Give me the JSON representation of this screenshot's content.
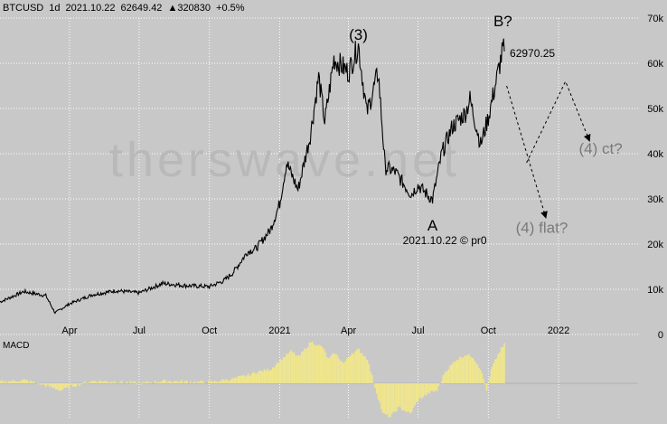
{
  "header": {
    "symbol": "BTCUSD",
    "interval": "1d",
    "date": "2021.10.22",
    "price": "62649.42",
    "volume_text": "▲320830",
    "change": "+0.5%"
  },
  "watermark": "therswave.net",
  "colors": {
    "background": "#c8c8c8",
    "grid": "#ffffff",
    "price_line": "#000000",
    "macd_fill": "#f0e68c",
    "annotation_gray": "#7a7a7a"
  },
  "chart_data": [
    {
      "type": "line",
      "title": "BTCUSD",
      "x_tick_labels": [
        "Apr",
        "Jul",
        "Oct",
        "2021",
        "Apr",
        "Jul",
        "Oct",
        "2022"
      ],
      "y_tick_labels": [
        "0",
        "10k",
        "20k",
        "30k",
        "40k",
        "50k",
        "60k",
        "70k"
      ],
      "ylim": [
        0,
        70000
      ],
      "xlim": [
        "2020-01-01",
        "2022-04-15"
      ],
      "y_axis_side": "right",
      "grid": true,
      "x": [
        "2020-01-01",
        "2020-02-01",
        "2020-03-01",
        "2020-03-13",
        "2020-04-01",
        "2020-05-01",
        "2020-06-01",
        "2020-07-01",
        "2020-08-01",
        "2020-09-01",
        "2020-10-01",
        "2020-10-20",
        "2020-11-01",
        "2020-11-20",
        "2020-12-01",
        "2020-12-20",
        "2021-01-01",
        "2021-01-10",
        "2021-01-25",
        "2021-02-10",
        "2021-02-21",
        "2021-03-01",
        "2021-03-13",
        "2021-04-01",
        "2021-04-14",
        "2021-04-25",
        "2021-05-10",
        "2021-05-19",
        "2021-06-01",
        "2021-06-22",
        "2021-07-01",
        "2021-07-20",
        "2021-08-01",
        "2021-08-15",
        "2021-09-01",
        "2021-09-07",
        "2021-09-21",
        "2021-10-01",
        "2021-10-10",
        "2021-10-20",
        "2021-10-22"
      ],
      "y": [
        7200,
        9500,
        8600,
        4800,
        6800,
        8800,
        9700,
        9200,
        11300,
        10800,
        10600,
        11900,
        13700,
        18300,
        19000,
        23200,
        29000,
        38000,
        32000,
        44000,
        57000,
        47000,
        61000,
        58000,
        64000,
        49000,
        58000,
        37000,
        36000,
        31000,
        33000,
        29800,
        40000,
        46000,
        49000,
        52000,
        42000,
        48000,
        55000,
        63000,
        62649
      ],
      "annotations": [
        {
          "label": "(3)",
          "x": "2021-04-14",
          "y": 64000
        },
        {
          "label": "A",
          "x": "2021-07-20",
          "y": 29800
        },
        {
          "label": "B?",
          "x": "2021-10-20",
          "y": 67000
        },
        {
          "label": "62970.25",
          "x": "2021-10-22",
          "y": 62970
        },
        {
          "label": "2021.10.22 © pr0",
          "x": "2021-08-05",
          "y": 20000
        },
        {
          "label": "(4) flat?",
          "x": "2021-12-10",
          "y": 22500
        },
        {
          "label": "(4) ct?",
          "x": "2022-02-25",
          "y": 40000
        }
      ],
      "projections": [
        {
          "name": "flat",
          "x": [
            "2021-10-25",
            "2021-12-15"
          ],
          "y": [
            55000,
            26000
          ]
        },
        {
          "name": "ct",
          "x": [
            "2021-11-20",
            "2022-01-10",
            "2022-02-10"
          ],
          "y": [
            38000,
            56000,
            43000
          ]
        }
      ]
    },
    {
      "type": "bar",
      "title": "MACD",
      "x": [
        "2020-01-01",
        "2020-02-01",
        "2020-03-01",
        "2020-03-20",
        "2020-04-01",
        "2020-05-01",
        "2020-06-01",
        "2020-07-01",
        "2020-08-01",
        "2020-09-01",
        "2020-10-01",
        "2020-10-20",
        "2020-11-01",
        "2020-11-20",
        "2020-12-01",
        "2020-12-20",
        "2021-01-01",
        "2021-01-15",
        "2021-01-25",
        "2021-02-10",
        "2021-02-25",
        "2021-03-05",
        "2021-03-13",
        "2021-03-25",
        "2021-04-05",
        "2021-04-14",
        "2021-04-25",
        "2021-05-05",
        "2021-05-15",
        "2021-05-25",
        "2021-06-05",
        "2021-06-20",
        "2021-07-01",
        "2021-07-15",
        "2021-07-25",
        "2021-08-05",
        "2021-08-20",
        "2021-09-01",
        "2021-09-10",
        "2021-09-20",
        "2021-09-28",
        "2021-10-05",
        "2021-10-15",
        "2021-10-22"
      ],
      "values": [
        20,
        40,
        -30,
        -90,
        -40,
        30,
        20,
        0,
        30,
        20,
        15,
        40,
        60,
        100,
        140,
        180,
        290,
        400,
        330,
        520,
        450,
        300,
        380,
        250,
        380,
        420,
        300,
        -50,
        -380,
        -420,
        -300,
        -380,
        -200,
        -120,
        -90,
        150,
        300,
        360,
        330,
        180,
        -80,
        200,
        400,
        500
      ],
      "ylim": [
        -520,
        520
      ]
    }
  ]
}
